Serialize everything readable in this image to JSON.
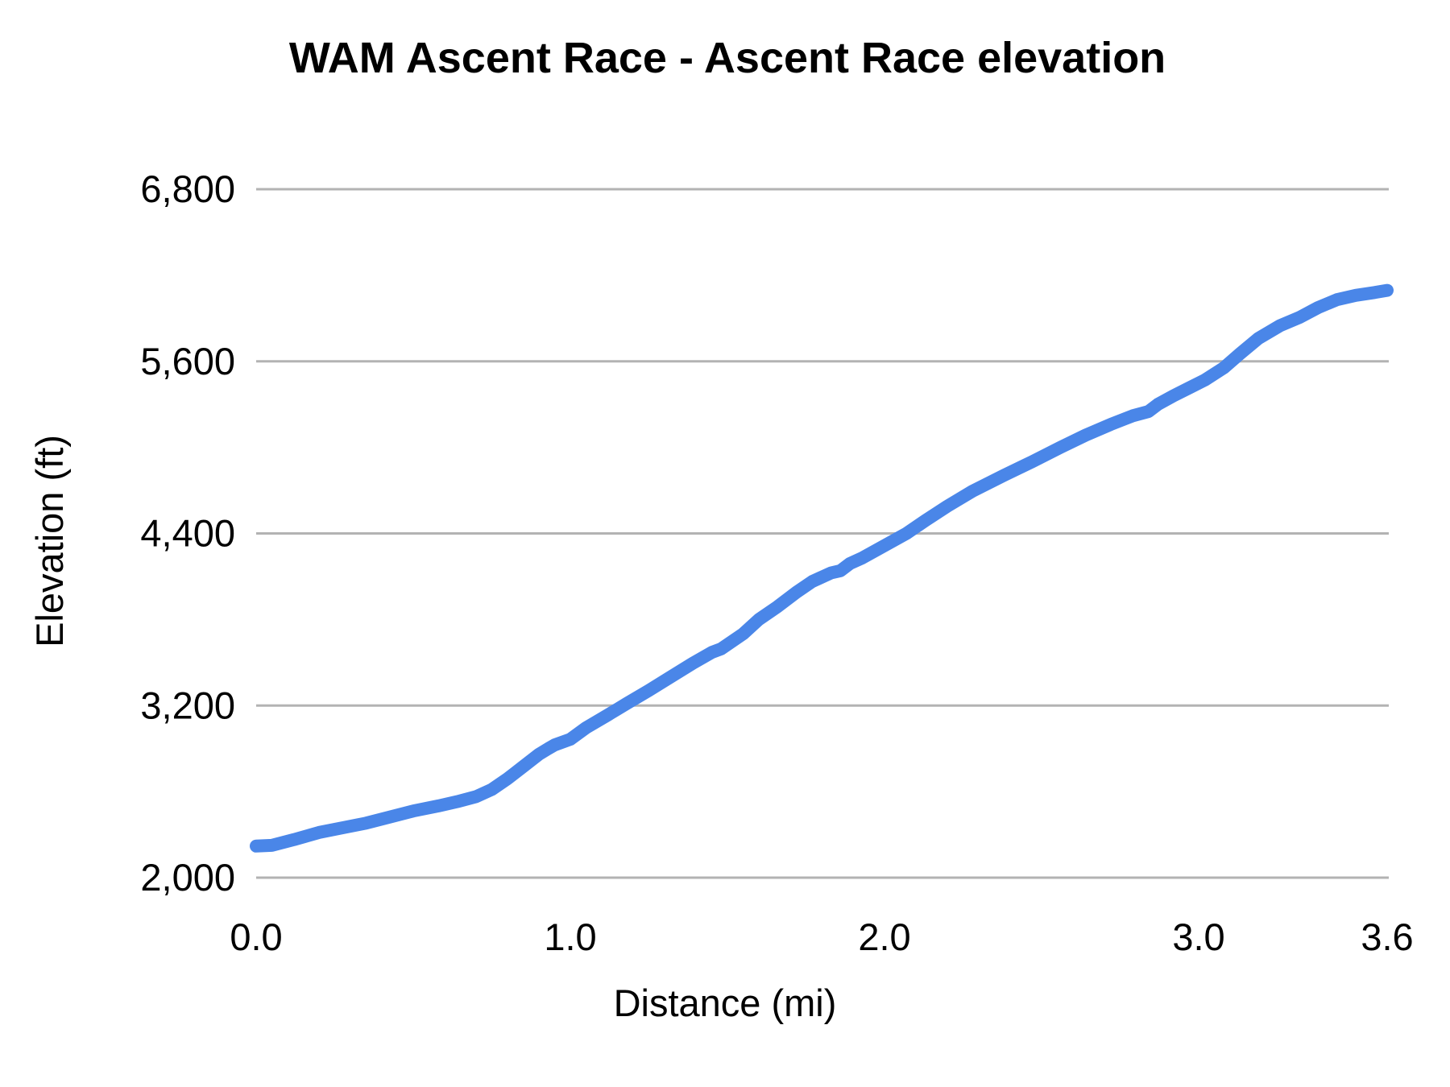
{
  "chart_data": {
    "type": "line",
    "title": "WAM Ascent Race - Ascent Race elevation",
    "xlabel": "Distance (mi)",
    "ylabel": "Elevation (ft)",
    "xlim": [
      0,
      3.6
    ],
    "ylim": [
      2000,
      6800
    ],
    "grid": "horizontal-only",
    "legend_position": "none",
    "line_color": "#4a86e8",
    "grid_color": "#b3b3b3",
    "text_color": "#000000",
    "background_color": "#ffffff",
    "x_ticks": [
      {
        "value": 0.0,
        "label": "0.0"
      },
      {
        "value": 1.0,
        "label": "1.0"
      },
      {
        "value": 2.0,
        "label": "2.0"
      },
      {
        "value": 3.0,
        "label": "3.0"
      },
      {
        "value": 3.6,
        "label": "3.6"
      }
    ],
    "y_ticks": [
      {
        "value": 2000,
        "label": "2,000"
      },
      {
        "value": 3200,
        "label": "3,200"
      },
      {
        "value": 4400,
        "label": "4,400"
      },
      {
        "value": 5600,
        "label": "5,600"
      },
      {
        "value": 6800,
        "label": "6,800"
      }
    ],
    "series": [
      {
        "name": "Ascent Race elevation",
        "x_unit": "mi",
        "y_unit": "ft",
        "points": [
          [
            0.0,
            2220
          ],
          [
            0.05,
            2225
          ],
          [
            0.12,
            2265
          ],
          [
            0.2,
            2315
          ],
          [
            0.28,
            2350
          ],
          [
            0.35,
            2380
          ],
          [
            0.42,
            2420
          ],
          [
            0.5,
            2465
          ],
          [
            0.58,
            2500
          ],
          [
            0.64,
            2530
          ],
          [
            0.7,
            2565
          ],
          [
            0.75,
            2615
          ],
          [
            0.8,
            2690
          ],
          [
            0.85,
            2775
          ],
          [
            0.9,
            2860
          ],
          [
            0.93,
            2900
          ],
          [
            0.95,
            2925
          ],
          [
            1.0,
            2965
          ],
          [
            1.05,
            3045
          ],
          [
            1.12,
            3135
          ],
          [
            1.18,
            3215
          ],
          [
            1.25,
            3305
          ],
          [
            1.32,
            3400
          ],
          [
            1.39,
            3495
          ],
          [
            1.45,
            3570
          ],
          [
            1.48,
            3595
          ],
          [
            1.55,
            3700
          ],
          [
            1.6,
            3800
          ],
          [
            1.66,
            3890
          ],
          [
            1.72,
            3990
          ],
          [
            1.77,
            4065
          ],
          [
            1.83,
            4125
          ],
          [
            1.86,
            4140
          ],
          [
            1.89,
            4190
          ],
          [
            1.93,
            4230
          ],
          [
            2.0,
            4315
          ],
          [
            2.07,
            4400
          ],
          [
            2.13,
            4490
          ],
          [
            2.2,
            4590
          ],
          [
            2.28,
            4695
          ],
          [
            2.38,
            4805
          ],
          [
            2.47,
            4900
          ],
          [
            2.56,
            5000
          ],
          [
            2.64,
            5085
          ],
          [
            2.72,
            5160
          ],
          [
            2.79,
            5220
          ],
          [
            2.84,
            5250
          ],
          [
            2.87,
            5300
          ],
          [
            2.92,
            5360
          ],
          [
            2.97,
            5415
          ],
          [
            3.02,
            5470
          ],
          [
            3.08,
            5555
          ],
          [
            3.13,
            5650
          ],
          [
            3.19,
            5760
          ],
          [
            3.26,
            5850
          ],
          [
            3.32,
            5905
          ],
          [
            3.38,
            5975
          ],
          [
            3.44,
            6030
          ],
          [
            3.5,
            6060
          ],
          [
            3.56,
            6080
          ],
          [
            3.6,
            6095
          ]
        ]
      }
    ]
  }
}
